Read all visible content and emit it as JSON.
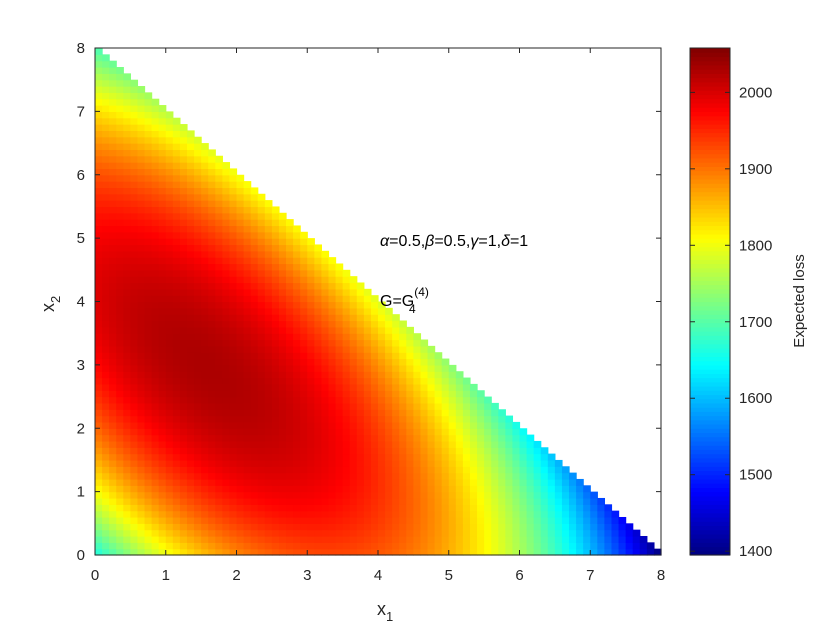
{
  "chart_data": {
    "type": "heatmap",
    "title": "",
    "xlabel": "x",
    "xlabel_sub": "1",
    "ylabel": "x",
    "ylabel_sub": "2",
    "xlim": [
      0,
      8
    ],
    "ylim": [
      0,
      8
    ],
    "xticks": [
      0,
      1,
      2,
      3,
      4,
      5,
      6,
      7,
      8
    ],
    "yticks": [
      0,
      1,
      2,
      3,
      4,
      5,
      6,
      7,
      8
    ],
    "domain": "x1 + x2 <= 8",
    "grid": false,
    "colormap": "jet",
    "colorbar": {
      "label": "Expected loss",
      "range": [
        1395,
        2058
      ],
      "ticks": [
        1400,
        1500,
        1600,
        1700,
        1800,
        1900,
        2000
      ]
    },
    "surface_samples": [
      {
        "x1": 2.0,
        "x2": 2.5,
        "value": 2055
      },
      {
        "x1": 0.0,
        "x2": 0.0,
        "value": 1680
      },
      {
        "x1": 8.0,
        "x2": 0.0,
        "value": 1400
      },
      {
        "x1": 0.0,
        "x2": 8.0,
        "value": 1690
      },
      {
        "x1": 4.0,
        "x2": 4.0,
        "value": 1780
      },
      {
        "x1": 6.0,
        "x2": 2.0,
        "value": 1660
      },
      {
        "x1": 5.5,
        "x2": 0.5,
        "value": 1800
      },
      {
        "x1": 0.5,
        "x2": 7.0,
        "value": 1810
      },
      {
        "x1": 0.3,
        "x2": 1.0,
        "value": 1800
      }
    ],
    "annotations": {
      "params": {
        "alpha": "0.5",
        "beta": "0.5",
        "gamma": "1",
        "delta": "1"
      },
      "model": {
        "base": "G=G",
        "sub": "4",
        "sup": "(4)"
      }
    }
  }
}
